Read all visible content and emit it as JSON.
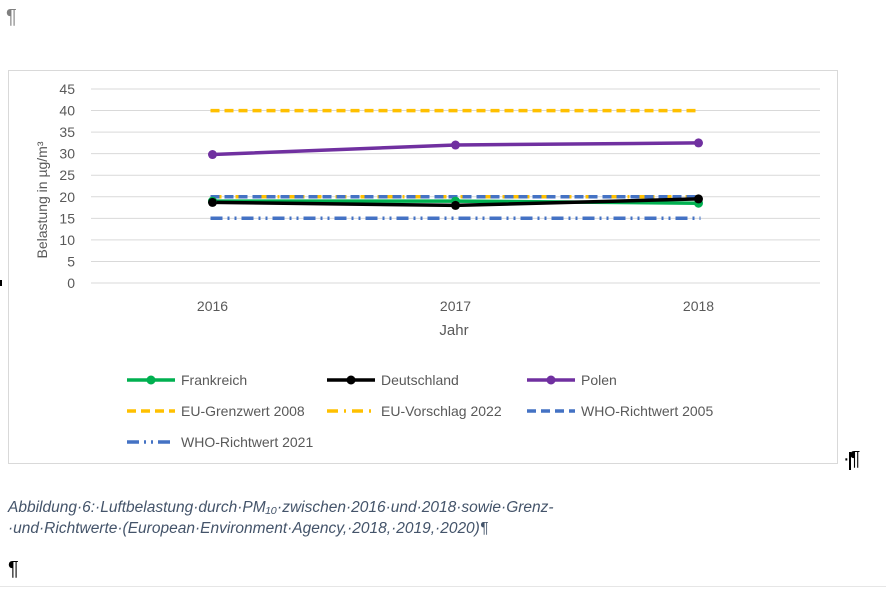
{
  "document": {
    "pilcrow": "¶",
    "frame_marker": "·¶",
    "caption": "Abbildung·6:·Luftbelastung·durch·PM₁₀·zwischen·2016·und·2018·sowie·Grenz-·und·Richtwerte·(European·Environment·Agency,·2018,·2019,·2020)¶"
  },
  "chart_data": {
    "type": "line",
    "title": "",
    "xlabel": "Jahr",
    "ylabel": "Belastung in µg/m³",
    "categories": [
      "2016",
      "2017",
      "2018"
    ],
    "ylim": [
      0,
      45
    ],
    "yticks": [
      0,
      5,
      10,
      15,
      20,
      25,
      30,
      35,
      40,
      45
    ],
    "grid": true,
    "legend_position": "bottom",
    "series": [
      {
        "name": "Frankreich",
        "values": [
          19,
          19,
          18.5
        ],
        "color": "#00b050",
        "style": "solid",
        "markers": true
      },
      {
        "name": "Deutschland",
        "values": [
          18.7,
          18,
          19.5
        ],
        "color": "#000000",
        "style": "solid",
        "markers": true
      },
      {
        "name": "Polen",
        "values": [
          29.8,
          32,
          32.5
        ],
        "color": "#7030a0",
        "style": "solid",
        "markers": true
      },
      {
        "name": "EU-Grenzwert 2008",
        "values": [
          40,
          40,
          40
        ],
        "color": "#ffc000",
        "style": "dash",
        "markers": false
      },
      {
        "name": "EU-Vorschlag 2022",
        "values": [
          20,
          20,
          20
        ],
        "color": "#ffc000",
        "style": "dashdot",
        "markers": false
      },
      {
        "name": "WHO-Richtwert 2005",
        "values": [
          20,
          20,
          20
        ],
        "color": "#4472c4",
        "style": "dash",
        "markers": false
      },
      {
        "name": "WHO-Richtwert 2021",
        "values": [
          15,
          15,
          15
        ],
        "color": "#4472c4",
        "style": "dashdotdot",
        "markers": false
      }
    ]
  }
}
